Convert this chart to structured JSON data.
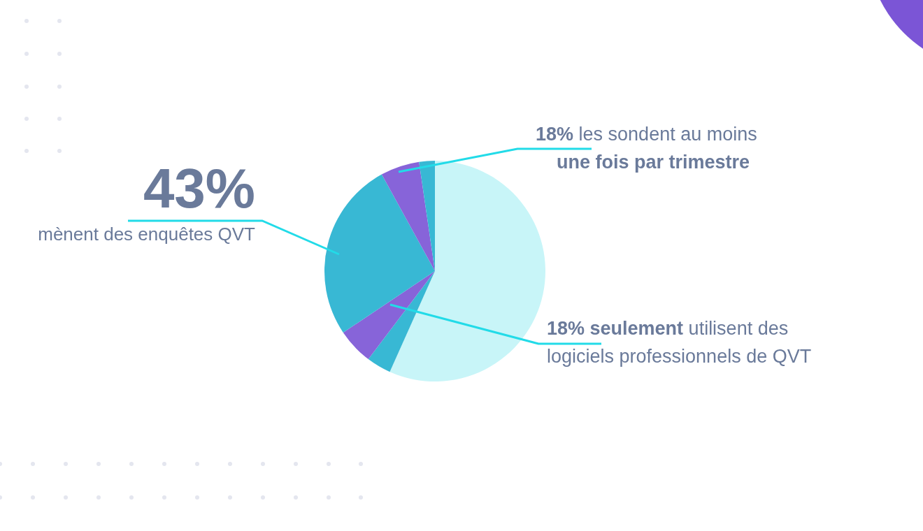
{
  "chart_data": {
    "type": "pie",
    "categories": [
      null,
      null,
      null,
      null,
      null,
      null
    ],
    "values": [
      56.7,
      3.6,
      5.3,
      26.4,
      5.7,
      2.3
    ],
    "colors": [
      "#c8f5f8",
      "#38b8d4",
      "#8764d9",
      "#38b8d4",
      "#8764d9",
      "#38b8d4"
    ],
    "annotations": [
      "43%",
      "mènent des enquêtes QVT",
      "18% les sondent au moins",
      "une fois par trimestre",
      "18% seulement utilisent des",
      "logiciels professionnels de QVT"
    ]
  }
}
